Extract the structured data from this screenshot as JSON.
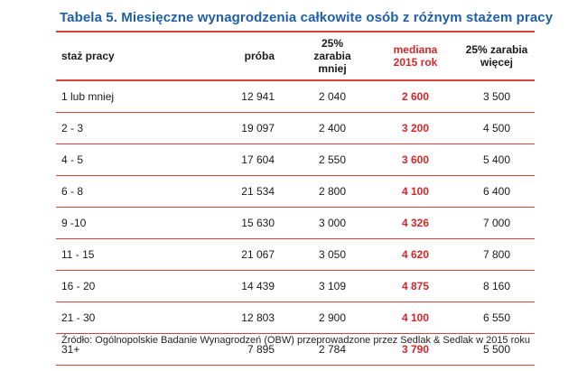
{
  "title": "Tabela 5. Miesięczne wynagrodzenia całkowite osób z różnym stażem pracy",
  "columns": [
    "staż pracy",
    "próba",
    "25%\nzarabia\nmniej",
    "mediana\n2015 rok",
    "25% zarabia\nwięcej"
  ],
  "rows": [
    [
      "1 lub mniej",
      "12 941",
      "2 040",
      "2 600",
      "3 500"
    ],
    [
      "2 - 3",
      "19 097",
      "2 400",
      "3 200",
      "4 500"
    ],
    [
      "4 - 5",
      "17 604",
      "2 550",
      "3 600",
      "5 400"
    ],
    [
      "6 - 8",
      "21 534",
      "2 800",
      "4 100",
      "6 400"
    ],
    [
      "9 -10",
      "15 630",
      "3 000",
      "4 326",
      "7 000"
    ],
    [
      "11 - 15",
      "21 067",
      "3 050",
      "4 620",
      "7 800"
    ],
    [
      "16 - 20",
      "14 439",
      "3 109",
      "4 875",
      "8 160"
    ],
    [
      "21 - 30",
      "12 803",
      "2 900",
      "4 100",
      "6 550"
    ],
    [
      "31+",
      "7 895",
      "2 784",
      "3 790",
      "5 500"
    ]
  ],
  "source": "Źródło: Ogólnopolskie Badanie Wynagrodzeń (OBW) przeprowadzone przez Sedlak & Sedlak w 2015 roku",
  "colors": {
    "title": "#1e5fa8",
    "accent_red": "#d7262a",
    "rule": "#d9413f"
  }
}
